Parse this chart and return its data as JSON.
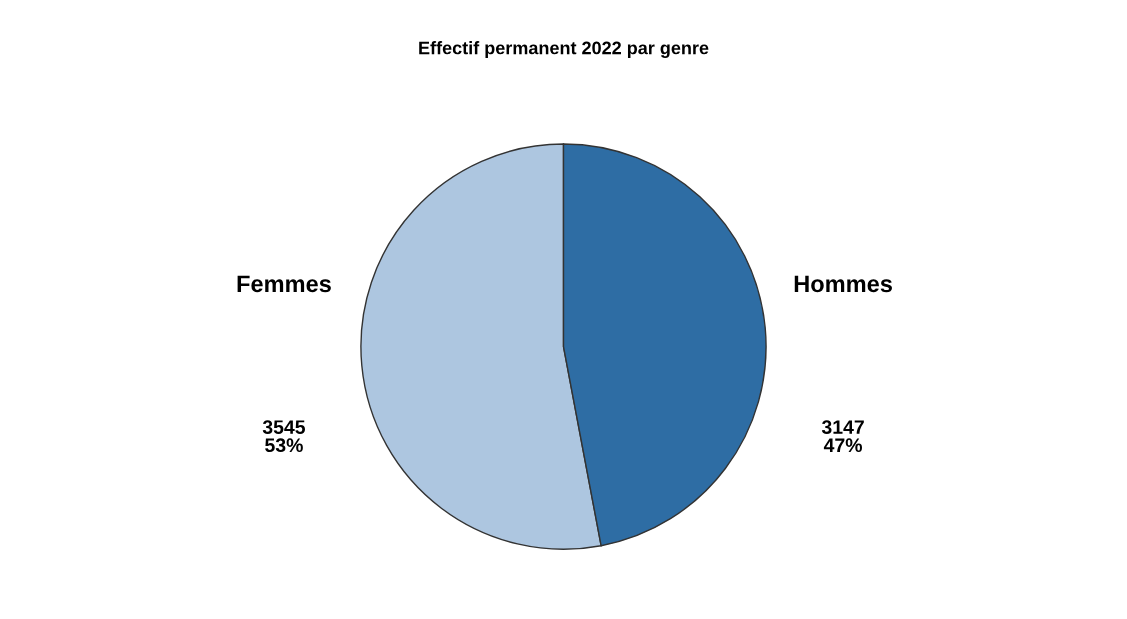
{
  "chart_data": {
    "type": "pie",
    "title": "Effectif permanent 2022 par genre",
    "categories": [
      "Femmes",
      "Hommes"
    ],
    "values": [
      3545,
      3147
    ],
    "colors": [
      "#adc6e0",
      "#2e6da4"
    ],
    "value_labels": [
      "3545\n53%",
      "3147\n47%"
    ]
  }
}
